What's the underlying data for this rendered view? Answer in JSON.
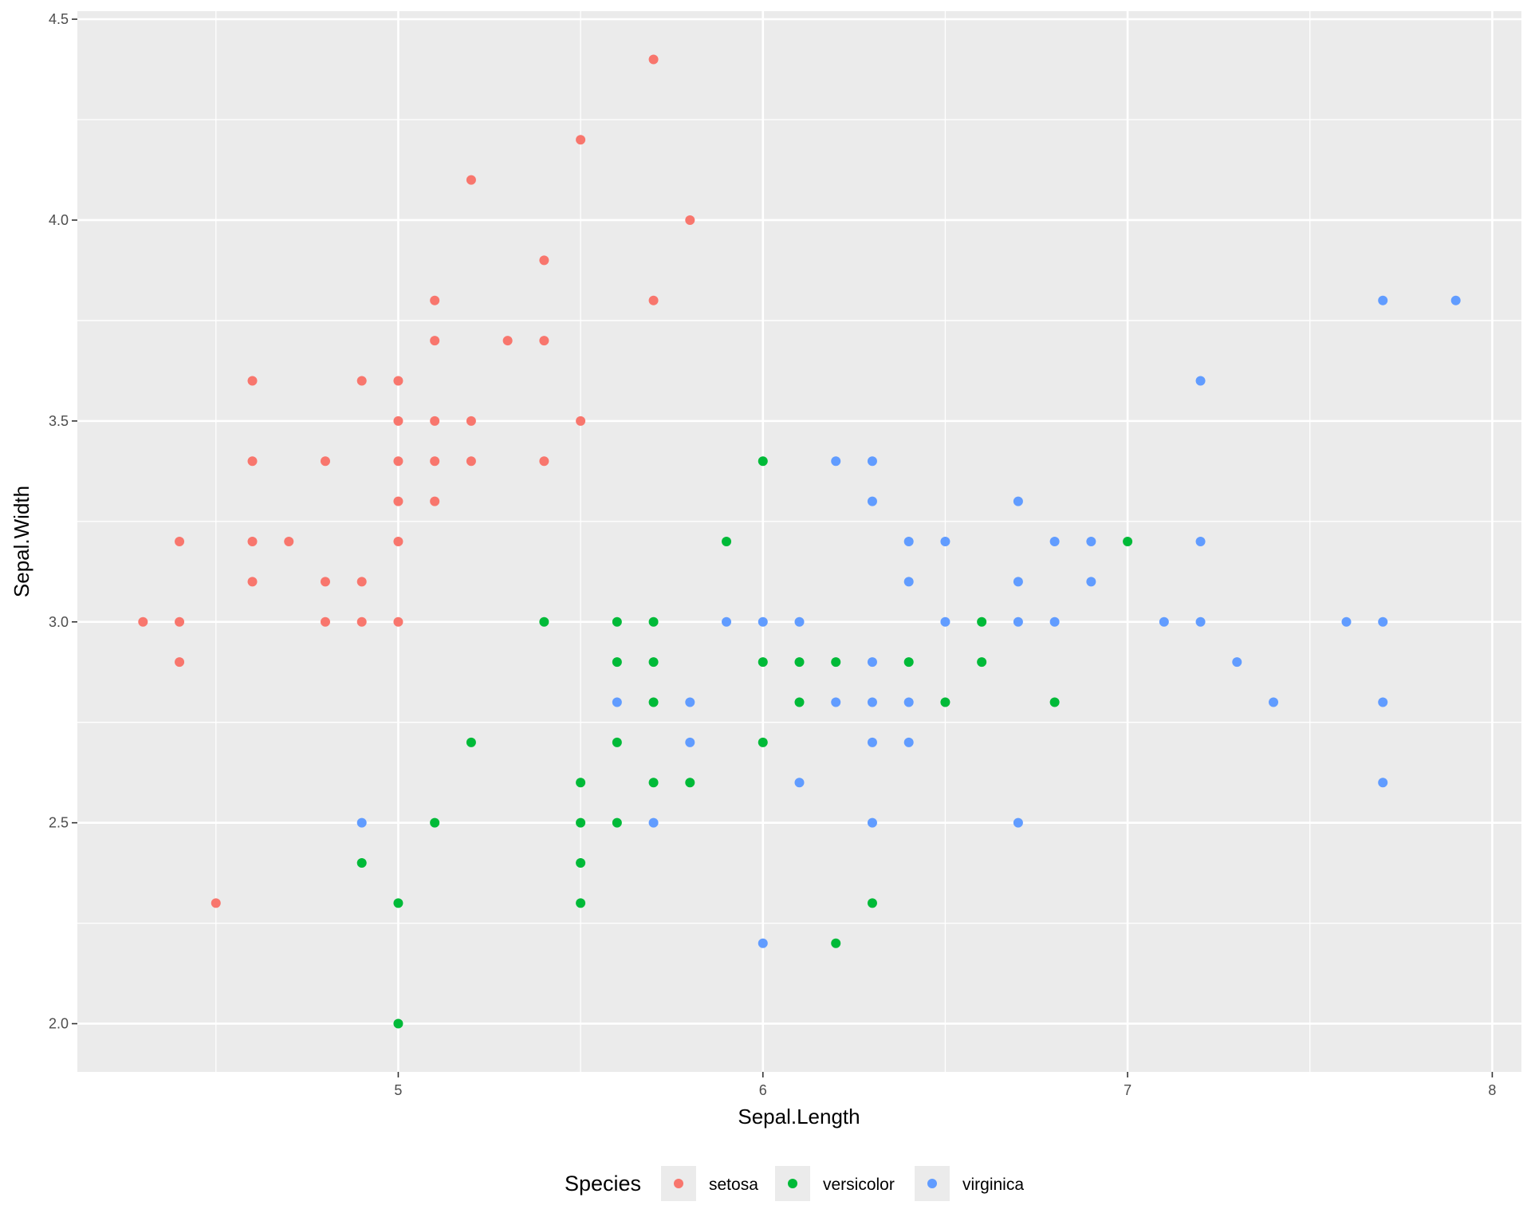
{
  "chart_data": {
    "type": "scatter",
    "xlabel": "Sepal.Length",
    "ylabel": "Sepal.Width",
    "xlim": [
      4.12,
      8.08
    ],
    "ylim": [
      1.88,
      4.52
    ],
    "x_ticks": [
      5,
      6,
      7,
      8
    ],
    "x_tick_labels": [
      "5",
      "6",
      "7",
      "8"
    ],
    "y_ticks": [
      2.0,
      2.5,
      3.0,
      3.5,
      4.0,
      4.5
    ],
    "y_tick_labels": [
      "2.0",
      "2.5",
      "3.0",
      "3.5",
      "4.0",
      "4.5"
    ],
    "grid": true,
    "legend": {
      "title": "Species",
      "position": "bottom",
      "entries": [
        "setosa",
        "versicolor",
        "virginica"
      ]
    },
    "series": [
      {
        "name": "setosa",
        "color": "#F8766D",
        "points": [
          [
            5.7,
            4.4
          ],
          [
            5.5,
            4.2
          ],
          [
            5.2,
            4.1
          ],
          [
            5.8,
            4.0
          ],
          [
            5.4,
            3.9
          ],
          [
            5.1,
            3.8
          ],
          [
            5.7,
            3.8
          ],
          [
            5.1,
            3.7
          ],
          [
            5.3,
            3.7
          ],
          [
            5.4,
            3.7
          ],
          [
            4.6,
            3.6
          ],
          [
            4.9,
            3.6
          ],
          [
            5.0,
            3.6
          ],
          [
            5.0,
            3.5
          ],
          [
            5.1,
            3.5
          ],
          [
            5.2,
            3.5
          ],
          [
            5.5,
            3.5
          ],
          [
            4.6,
            3.4
          ],
          [
            4.8,
            3.4
          ],
          [
            5.0,
            3.4
          ],
          [
            5.1,
            3.4
          ],
          [
            5.2,
            3.4
          ],
          [
            5.4,
            3.4
          ],
          [
            5.0,
            3.3
          ],
          [
            5.1,
            3.3
          ],
          [
            4.4,
            3.2
          ],
          [
            4.6,
            3.2
          ],
          [
            4.7,
            3.2
          ],
          [
            5.0,
            3.2
          ],
          [
            4.6,
            3.1
          ],
          [
            4.8,
            3.1
          ],
          [
            4.9,
            3.1
          ],
          [
            4.3,
            3.0
          ],
          [
            4.4,
            3.0
          ],
          [
            4.8,
            3.0
          ],
          [
            4.9,
            3.0
          ],
          [
            5.0,
            3.0
          ],
          [
            4.4,
            2.9
          ],
          [
            4.5,
            2.3
          ]
        ]
      },
      {
        "name": "versicolor",
        "color": "#00BA38",
        "points": [
          [
            6.0,
            3.4
          ],
          [
            5.9,
            3.2
          ],
          [
            7.0,
            3.2
          ],
          [
            5.4,
            3.0
          ],
          [
            5.6,
            3.0
          ],
          [
            5.7,
            3.0
          ],
          [
            6.6,
            3.0
          ],
          [
            5.6,
            2.9
          ],
          [
            5.7,
            2.9
          ],
          [
            6.0,
            2.9
          ],
          [
            6.1,
            2.9
          ],
          [
            6.2,
            2.9
          ],
          [
            6.4,
            2.9
          ],
          [
            6.6,
            2.9
          ],
          [
            5.7,
            2.8
          ],
          [
            6.1,
            2.8
          ],
          [
            6.5,
            2.8
          ],
          [
            6.8,
            2.8
          ],
          [
            5.2,
            2.7
          ],
          [
            5.6,
            2.7
          ],
          [
            6.0,
            2.7
          ],
          [
            5.5,
            2.6
          ],
          [
            5.7,
            2.6
          ],
          [
            5.8,
            2.6
          ],
          [
            5.1,
            2.5
          ],
          [
            5.5,
            2.5
          ],
          [
            5.6,
            2.5
          ],
          [
            4.9,
            2.4
          ],
          [
            5.5,
            2.4
          ],
          [
            5.0,
            2.3
          ],
          [
            5.5,
            2.3
          ],
          [
            6.3,
            2.3
          ],
          [
            6.2,
            2.2
          ],
          [
            5.0,
            2.0
          ]
        ]
      },
      {
        "name": "virginica",
        "color": "#619CFF",
        "points": [
          [
            7.7,
            3.8
          ],
          [
            7.9,
            3.8
          ],
          [
            7.2,
            3.6
          ],
          [
            6.2,
            3.4
          ],
          [
            6.3,
            3.4
          ],
          [
            6.3,
            3.3
          ],
          [
            6.7,
            3.3
          ],
          [
            6.4,
            3.2
          ],
          [
            6.5,
            3.2
          ],
          [
            6.8,
            3.2
          ],
          [
            6.9,
            3.2
          ],
          [
            7.2,
            3.2
          ],
          [
            6.4,
            3.1
          ],
          [
            6.7,
            3.1
          ],
          [
            6.9,
            3.1
          ],
          [
            5.9,
            3.0
          ],
          [
            6.0,
            3.0
          ],
          [
            6.1,
            3.0
          ],
          [
            6.5,
            3.0
          ],
          [
            6.7,
            3.0
          ],
          [
            6.8,
            3.0
          ],
          [
            7.1,
            3.0
          ],
          [
            7.2,
            3.0
          ],
          [
            7.6,
            3.0
          ],
          [
            7.7,
            3.0
          ],
          [
            6.3,
            2.9
          ],
          [
            7.3,
            2.9
          ],
          [
            5.6,
            2.8
          ],
          [
            5.8,
            2.8
          ],
          [
            6.2,
            2.8
          ],
          [
            6.3,
            2.8
          ],
          [
            6.4,
            2.8
          ],
          [
            7.4,
            2.8
          ],
          [
            7.7,
            2.8
          ],
          [
            5.8,
            2.7
          ],
          [
            6.3,
            2.7
          ],
          [
            6.4,
            2.7
          ],
          [
            6.1,
            2.6
          ],
          [
            7.7,
            2.6
          ],
          [
            4.9,
            2.5
          ],
          [
            5.7,
            2.5
          ],
          [
            6.3,
            2.5
          ],
          [
            6.7,
            2.5
          ],
          [
            6.0,
            2.2
          ]
        ]
      }
    ]
  }
}
